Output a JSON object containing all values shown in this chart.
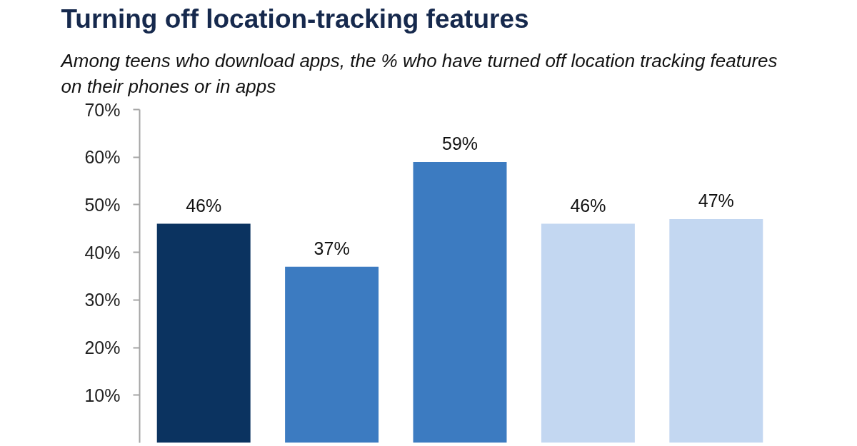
{
  "chart_data": {
    "type": "bar",
    "title": "Turning off location-tracking features",
    "subtitle": "Among teens who download apps, the % who have turned off location tracking features on their phones or in apps",
    "categories": [
      null,
      null,
      null,
      null,
      null
    ],
    "values": [
      46,
      37,
      59,
      46,
      47
    ],
    "value_labels": [
      "46%",
      "37%",
      "59%",
      "46%",
      "47%"
    ],
    "colors": [
      "#0b3360",
      "#3c7bc1",
      "#3c7bc1",
      "#c3d7f1",
      "#c3d7f1"
    ],
    "ylim": [
      0,
      70
    ],
    "yticks": [
      {
        "value": 10,
        "label": "10%"
      },
      {
        "value": 20,
        "label": "20%"
      },
      {
        "value": 30,
        "label": "30%"
      },
      {
        "value": 40,
        "label": "40%"
      },
      {
        "value": 50,
        "label": "50%"
      },
      {
        "value": 60,
        "label": "60%"
      },
      {
        "value": 70,
        "label": "70%"
      }
    ],
    "tick_labels": "y"
  }
}
